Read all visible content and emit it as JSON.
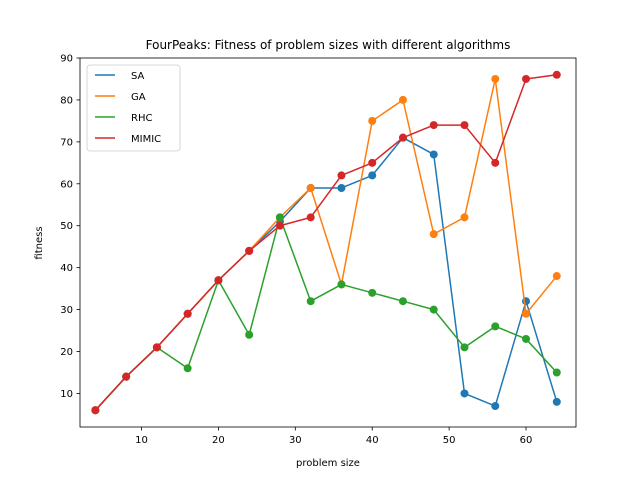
{
  "chart_data": {
    "type": "line",
    "title": "FourPeaks: Fitness of problem sizes with different algorithms",
    "xlabel": "problem size",
    "ylabel": "fitness",
    "xlim": [
      2,
      66.5
    ],
    "ylim": [
      2,
      90
    ],
    "xticks": [
      10,
      20,
      30,
      40,
      50,
      60
    ],
    "yticks": [
      10,
      20,
      30,
      40,
      50,
      60,
      70,
      80,
      90
    ],
    "grid": false,
    "legend_position": "top-left",
    "x": [
      4,
      8,
      12,
      16,
      20,
      24,
      28,
      32,
      36,
      40,
      44,
      48,
      52,
      56,
      60,
      64
    ],
    "series": [
      {
        "name": "SA",
        "color": "#1f77b4",
        "values": [
          6,
          14,
          21,
          29,
          37,
          44,
          51,
          59,
          59,
          62,
          71,
          67,
          10,
          7,
          32,
          8
        ]
      },
      {
        "name": "GA",
        "color": "#ff7f0e",
        "values": [
          6,
          14,
          21,
          29,
          37,
          44,
          52,
          59,
          36,
          75,
          80,
          48,
          52,
          85,
          29,
          38
        ]
      },
      {
        "name": "RHC",
        "color": "#2ca02c",
        "values": [
          6,
          14,
          21,
          16,
          37,
          24,
          52,
          32,
          36,
          34,
          32,
          30,
          21,
          26,
          23,
          15
        ]
      },
      {
        "name": "MIMIC",
        "color": "#d62728",
        "values": [
          6,
          14,
          21,
          29,
          37,
          44,
          50,
          52,
          62,
          65,
          71,
          74,
          74,
          65,
          85,
          86
        ]
      }
    ]
  }
}
